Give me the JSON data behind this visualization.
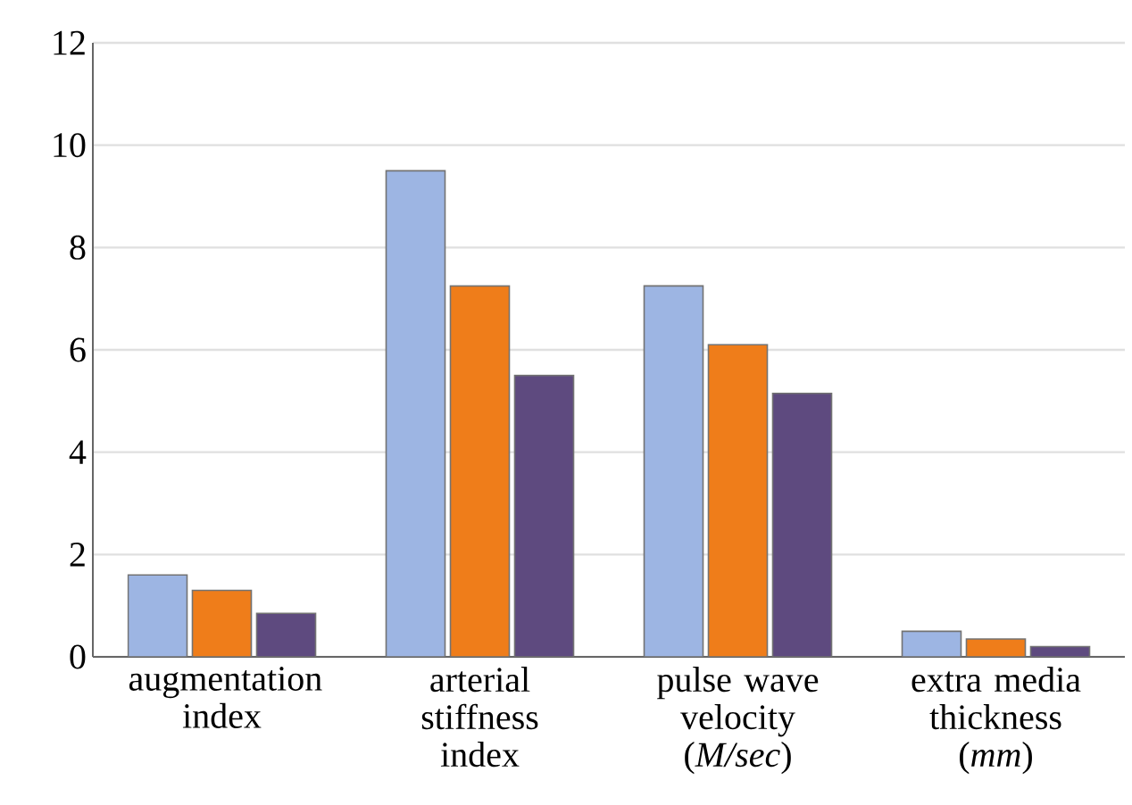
{
  "chart_data": {
    "type": "bar",
    "categories": [
      "augmentation index",
      "arterial stiffness index",
      "pulse wave velocity (*M/sec*)",
      "extra media thickness (*mm*)"
    ],
    "series": [
      {
        "color": "#9db5e3",
        "values": [
          1.6,
          9.5,
          7.25,
          0.5
        ]
      },
      {
        "color": "#ef7d1a",
        "values": [
          1.3,
          7.25,
          6.1,
          0.35
        ]
      },
      {
        "color": "#5e4a7f",
        "values": [
          0.85,
          5.5,
          5.15,
          0.2
        ]
      }
    ],
    "ylim": [
      0,
      12
    ],
    "yticks": [
      0,
      2,
      4,
      6,
      8,
      10,
      12
    ],
    "grid": "y"
  }
}
